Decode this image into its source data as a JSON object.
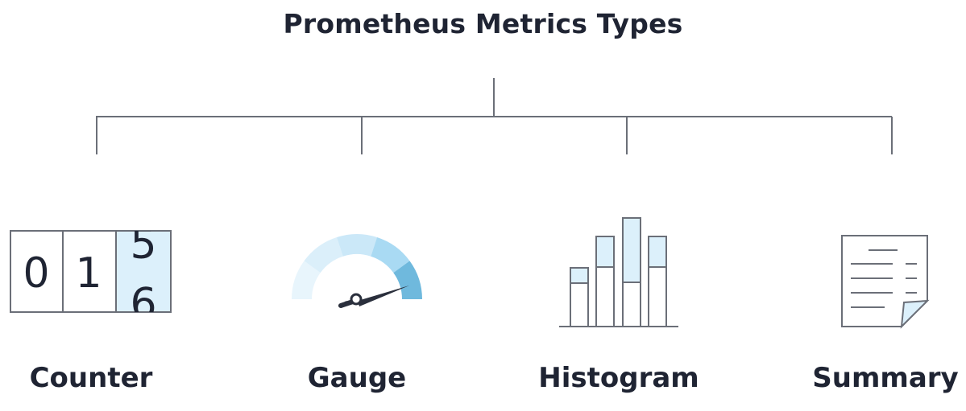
{
  "title": "Prometheus Metrics Types",
  "types": [
    {
      "label": "Counter",
      "icon": "counter-icon"
    },
    {
      "label": "Gauge",
      "icon": "gauge-icon"
    },
    {
      "label": "Histogram",
      "icon": "histogram-icon"
    },
    {
      "label": "Summary",
      "icon": "document-icon"
    }
  ],
  "counter": {
    "digit_1": "0",
    "digit_2": "1",
    "digit_3_top": "5",
    "digit_3_bottom": "6"
  },
  "colors": {
    "text": "#1f2433",
    "line": "#6b6f78",
    "highlight": "#dcf0fb",
    "gauge_1": "#e8f5fc",
    "gauge_2": "#dbeffa",
    "gauge_3": "#cbe8f8",
    "gauge_4": "#a9daf3",
    "gauge_5": "#6fb9dd"
  }
}
